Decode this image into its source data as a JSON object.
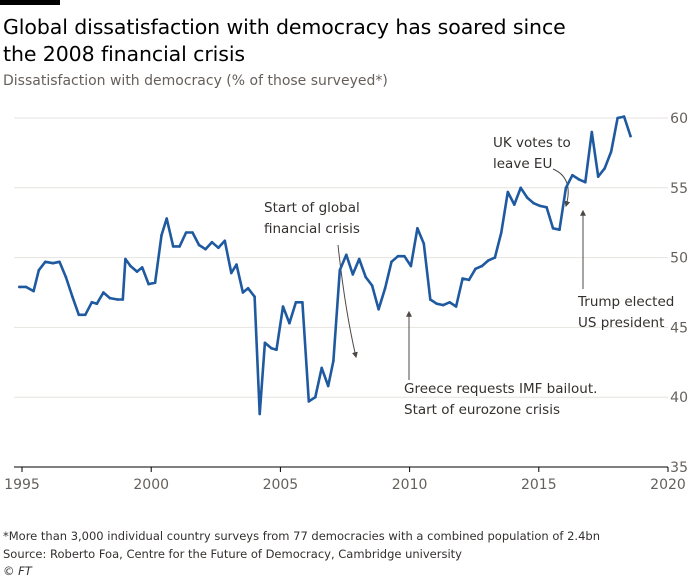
{
  "title": "Global dissatisfaction with democracy has soared since the 2008 financial crisis",
  "subtitle": "Dissatisfaction with democracy (% of those surveyed*)",
  "footnote": "*More than 3,000 individual country surveys from 77 democracies with a combined population of 2.4bn",
  "source": "Source: Roberto Foa, Centre for the Future of Democracy, Cambridge university",
  "credit": "© FT",
  "chart_data": {
    "type": "line",
    "title": "Global dissatisfaction with democracy has soared since the 2008 financial crisis",
    "ylabel": "Dissatisfaction with democracy (% of those surveyed*)",
    "xlim": [
      1995,
      2020
    ],
    "ylim": [
      35,
      60
    ],
    "x_ticks": [
      1995,
      2000,
      2005,
      2010,
      2015,
      2020
    ],
    "y_ticks": [
      35,
      40,
      45,
      50,
      55,
      60
    ],
    "grid": "horizontal",
    "line_color": "#1f5aa0",
    "series": [
      {
        "points": [
          [
            1994.9,
            47.9
          ],
          [
            1995.15,
            47.9
          ],
          [
            1995.45,
            47.6
          ],
          [
            1995.65,
            49.1
          ],
          [
            1995.9,
            49.7
          ],
          [
            1996.2,
            49.6
          ],
          [
            1996.45,
            49.7
          ],
          [
            1996.7,
            48.6
          ],
          [
            1996.95,
            47.2
          ],
          [
            1997.2,
            45.9
          ],
          [
            1997.45,
            45.9
          ],
          [
            1997.7,
            46.8
          ],
          [
            1997.9,
            46.7
          ],
          [
            1998.15,
            47.5
          ],
          [
            1998.4,
            47.1
          ],
          [
            1998.7,
            47.0
          ],
          [
            1998.9,
            47.0
          ],
          [
            1999.0,
            49.9
          ],
          [
            1999.2,
            49.4
          ],
          [
            1999.45,
            49.0
          ],
          [
            1999.65,
            49.3
          ],
          [
            1999.9,
            48.1
          ],
          [
            2000.15,
            48.2
          ],
          [
            2000.4,
            51.6
          ],
          [
            2000.6,
            52.8
          ],
          [
            2000.85,
            50.8
          ],
          [
            2001.1,
            50.8
          ],
          [
            2001.35,
            51.8
          ],
          [
            2001.6,
            51.8
          ],
          [
            2001.85,
            50.9
          ],
          [
            2002.1,
            50.6
          ],
          [
            2002.35,
            51.1
          ],
          [
            2002.6,
            50.7
          ],
          [
            2002.85,
            51.2
          ],
          [
            2003.1,
            48.9
          ],
          [
            2003.3,
            49.5
          ],
          [
            2003.55,
            47.5
          ],
          [
            2003.75,
            47.8
          ],
          [
            2004.0,
            47.2
          ],
          [
            2004.2,
            38.8
          ],
          [
            2004.4,
            43.9
          ],
          [
            2004.65,
            43.5
          ],
          [
            2004.85,
            43.4
          ],
          [
            2005.1,
            46.5
          ],
          [
            2005.35,
            45.3
          ],
          [
            2005.6,
            46.8
          ],
          [
            2005.85,
            46.8
          ],
          [
            2006.1,
            39.7
          ],
          [
            2006.35,
            40.0
          ],
          [
            2006.6,
            42.1
          ],
          [
            2006.85,
            40.8
          ],
          [
            2007.05,
            42.6
          ],
          [
            2007.3,
            49.1
          ],
          [
            2007.55,
            50.2
          ],
          [
            2007.8,
            48.8
          ],
          [
            2008.05,
            49.9
          ],
          [
            2008.3,
            48.6
          ],
          [
            2008.55,
            48.0
          ],
          [
            2008.8,
            46.3
          ],
          [
            2009.05,
            47.8
          ],
          [
            2009.3,
            49.7
          ],
          [
            2009.55,
            50.1
          ],
          [
            2009.8,
            50.1
          ],
          [
            2010.05,
            49.4
          ],
          [
            2010.3,
            52.1
          ],
          [
            2010.55,
            51.0
          ],
          [
            2010.8,
            47.0
          ],
          [
            2011.05,
            46.7
          ],
          [
            2011.3,
            46.6
          ],
          [
            2011.55,
            46.8
          ],
          [
            2011.8,
            46.5
          ],
          [
            2012.05,
            48.5
          ],
          [
            2012.3,
            48.4
          ],
          [
            2012.55,
            49.2
          ],
          [
            2012.8,
            49.4
          ],
          [
            2013.05,
            49.8
          ],
          [
            2013.3,
            50.0
          ],
          [
            2013.55,
            51.8
          ],
          [
            2013.8,
            54.7
          ],
          [
            2014.05,
            53.8
          ],
          [
            2014.3,
            55.0
          ],
          [
            2014.55,
            54.3
          ],
          [
            2014.8,
            53.9
          ],
          [
            2015.05,
            53.7
          ],
          [
            2015.3,
            53.6
          ],
          [
            2015.55,
            52.1
          ],
          [
            2015.8,
            52.0
          ],
          [
            2016.05,
            55.0
          ],
          [
            2016.3,
            55.9
          ],
          [
            2016.55,
            55.6
          ],
          [
            2016.8,
            55.4
          ],
          [
            2017.05,
            59.0
          ],
          [
            2017.3,
            55.8
          ],
          [
            2017.55,
            56.4
          ],
          [
            2017.8,
            57.6
          ],
          [
            2018.05,
            60.0
          ],
          [
            2018.3,
            60.1
          ],
          [
            2018.55,
            58.7
          ]
        ]
      }
    ],
    "annotations": [
      {
        "lines": [
          "Start of global",
          "financial crisis"
        ],
        "x": 2008.3,
        "y": 42.6
      },
      {
        "lines": [
          "Greece requests IMF bailout.",
          "Start of eurozone crisis"
        ],
        "x": 2010.3,
        "y": 46.4
      },
      {
        "lines": [
          "UK votes to",
          "leave EU"
        ],
        "x": 2016.4,
        "y": 53.9
      },
      {
        "lines": [
          "Trump elected",
          "US president"
        ],
        "x": 2016.85,
        "y": 53.5
      }
    ]
  }
}
